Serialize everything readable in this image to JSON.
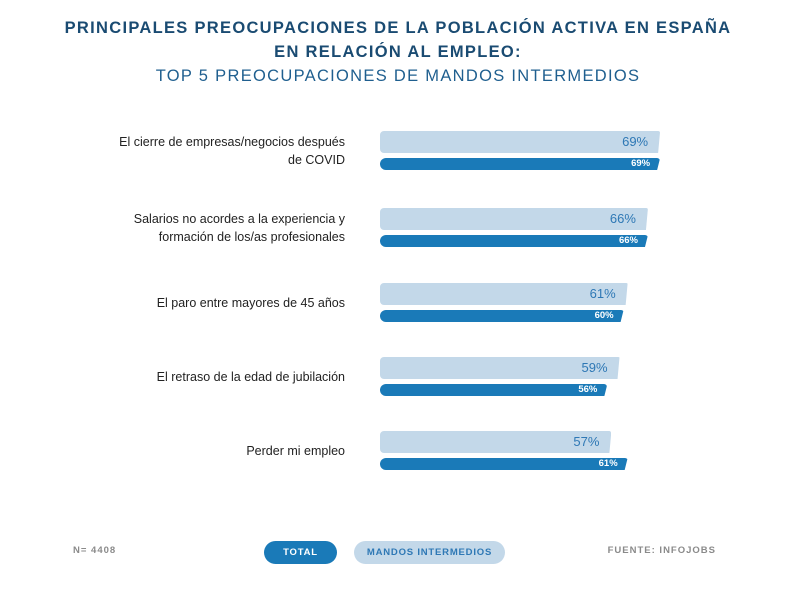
{
  "title": {
    "line1": "PRINCIPALES PREOCUPACIONES DE LA POBLACIÓN ACTIVA EN ESPAÑA",
    "line2": "EN RELACIÓN AL EMPLEO:",
    "line3": "TOP 5 PREOCUPACIONES DE MANDOS INTERMEDIOS"
  },
  "colors": {
    "title": "#1a4b72",
    "total": "#1a7ab8",
    "mandos_intermedios": "#c3d8e9",
    "label_text": "#222222"
  },
  "chart_data": {
    "type": "bar",
    "orientation": "horizontal",
    "title": "PRINCIPALES PREOCUPACIONES DE LA POBLACIÓN ACTIVA EN ESPAÑA EN RELACIÓN AL EMPLEO: TOP 5 PREOCUPACIONES DE MANDOS INTERMEDIOS",
    "categories": [
      [
        "El cierre de empresas/negocios después",
        "de COVID"
      ],
      [
        "Salarios no acordes a la experiencia y",
        "formación de los/as profesionales"
      ],
      [
        "El paro entre mayores de 45 años"
      ],
      [
        "El retraso de la edad de jubilación"
      ],
      [
        "Perder mi empleo"
      ]
    ],
    "series": [
      {
        "name": "MANDOS INTERMEDIOS",
        "values": [
          69,
          66,
          61,
          59,
          57
        ],
        "labels": [
          "69%",
          "66%",
          "61%",
          "59%",
          "57%"
        ]
      },
      {
        "name": "TOTAL",
        "values": [
          69,
          66,
          60,
          56,
          61
        ],
        "labels": [
          "69%",
          "66%",
          "60%",
          "56%",
          "61%"
        ]
      }
    ],
    "unit": "%",
    "xlim": [
      0,
      100
    ],
    "grid": false,
    "legend": "bottom-center"
  },
  "footer": {
    "sample": "N= 4408",
    "source": "FUENTE: INFOJOBS",
    "legend_total": "TOTAL",
    "legend_mandos": "MANDOS INTERMEDIOS"
  }
}
